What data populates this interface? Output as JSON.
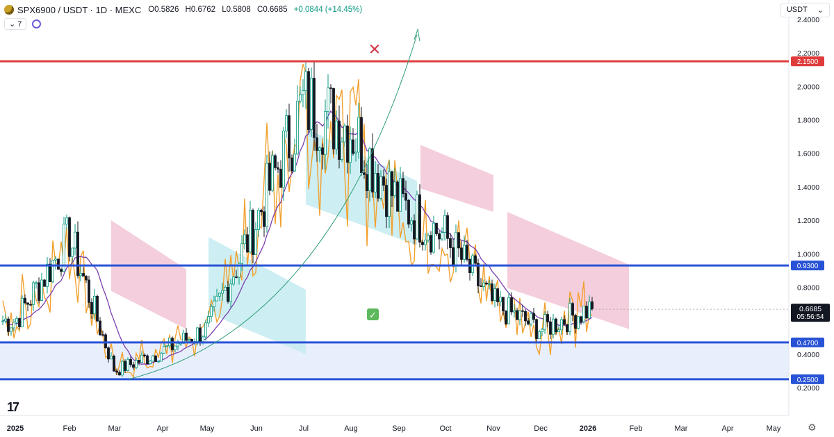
{
  "header": {
    "symbol": "SPX6900 / USDT · 1D · MEXC",
    "open": "O0.5826",
    "high": "H0.6762",
    "low": "L0.5808",
    "close": "C0.6685",
    "change": "+0.0844 (+14.45%)"
  },
  "indicator_count": "7",
  "currency_selector": "USDT",
  "price_label": {
    "value": "0.6685",
    "countdown": "05:56:54"
  },
  "colors": {
    "up": "#089981",
    "down": "#131722",
    "red_level": "#e03c3c",
    "blue_level": "#2953d6",
    "orange_line": "#f2a02e",
    "purple_ma": "#7b3fb0",
    "kumo_bear": "#f2c6d6",
    "kumo_bull": "#c4ebf0"
  },
  "chart_data": {
    "type": "candlestick",
    "title": "SPX6900 / USDT · 1D · MEXC",
    "ylim": [
      0.16,
      2.45
    ],
    "y_ticks": [
      "2.4000",
      "2.2000",
      "2.0000",
      "1.8000",
      "1.6000",
      "1.4000",
      "1.2000",
      "1.0000",
      "0.8000",
      "0.4000",
      "0.2000"
    ],
    "x_ticks": [
      "2025",
      "Feb",
      "Mar",
      "Apr",
      "May",
      "Jun",
      "Jul",
      "Aug",
      "Sep",
      "Oct",
      "Nov",
      "Dec",
      "2026",
      "Feb",
      "Mar",
      "Apr",
      "May"
    ],
    "horizontal_levels": [
      {
        "value": 2.15,
        "label": "2.1500",
        "color": "#e03c3c"
      },
      {
        "value": 0.93,
        "label": "0.9300",
        "color": "#2953d6"
      },
      {
        "value": 0.47,
        "label": "0.4700",
        "color": "#2953d6"
      },
      {
        "value": 0.25,
        "label": "0.2500",
        "color": "#2953d6"
      }
    ],
    "support_zone": [
      0.25,
      0.47
    ],
    "price_path_monthly_close": [
      [
        "2025",
        0.6
      ],
      [
        "Feb",
        1.1
      ],
      [
        "Mar",
        0.3
      ],
      [
        "Apr",
        0.42
      ],
      [
        "May",
        0.55
      ],
      [
        "Jun",
        1.2
      ],
      [
        "Jul",
        1.9
      ],
      [
        "Aug",
        1.75
      ],
      [
        "Sep",
        1.3
      ],
      [
        "Oct",
        1.1
      ],
      [
        "Nov",
        0.7
      ],
      [
        "Dec",
        0.55
      ],
      [
        "2026",
        0.6685
      ]
    ],
    "annotations": [
      {
        "type": "cross",
        "text": "✕",
        "color": "#d23a4b"
      },
      {
        "type": "check",
        "text": "✅"
      }
    ],
    "last_price": 0.6685
  }
}
